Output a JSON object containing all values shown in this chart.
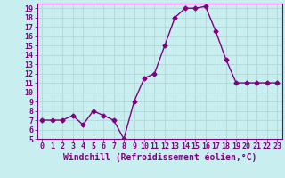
{
  "x": [
    0,
    1,
    2,
    3,
    4,
    5,
    6,
    7,
    8,
    9,
    10,
    11,
    12,
    13,
    14,
    15,
    16,
    17,
    18,
    19,
    20,
    21,
    22,
    23
  ],
  "y": [
    7.0,
    7.0,
    7.0,
    7.5,
    6.5,
    8.0,
    7.5,
    7.0,
    5.0,
    9.0,
    11.5,
    12.0,
    15.0,
    18.0,
    19.0,
    19.0,
    19.2,
    16.5,
    13.5,
    11.0,
    11.0,
    11.0,
    11.0,
    11.0
  ],
  "color": "#800080",
  "bg_color": "#c8eef0",
  "xlabel": "Windchill (Refroidissement éolien,°C)",
  "ylim": [
    5,
    19.5
  ],
  "xlim": [
    -0.5,
    23.5
  ],
  "yticks": [
    5,
    6,
    7,
    8,
    9,
    10,
    11,
    12,
    13,
    14,
    15,
    16,
    17,
    18,
    19
  ],
  "xticks": [
    0,
    1,
    2,
    3,
    4,
    5,
    6,
    7,
    8,
    9,
    10,
    11,
    12,
    13,
    14,
    15,
    16,
    17,
    18,
    19,
    20,
    21,
    22,
    23
  ],
  "marker": "D",
  "markersize": 2.5,
  "linewidth": 1.0,
  "grid_color": "#b0d8d8",
  "xlabel_fontsize": 7,
  "tick_fontsize": 6
}
